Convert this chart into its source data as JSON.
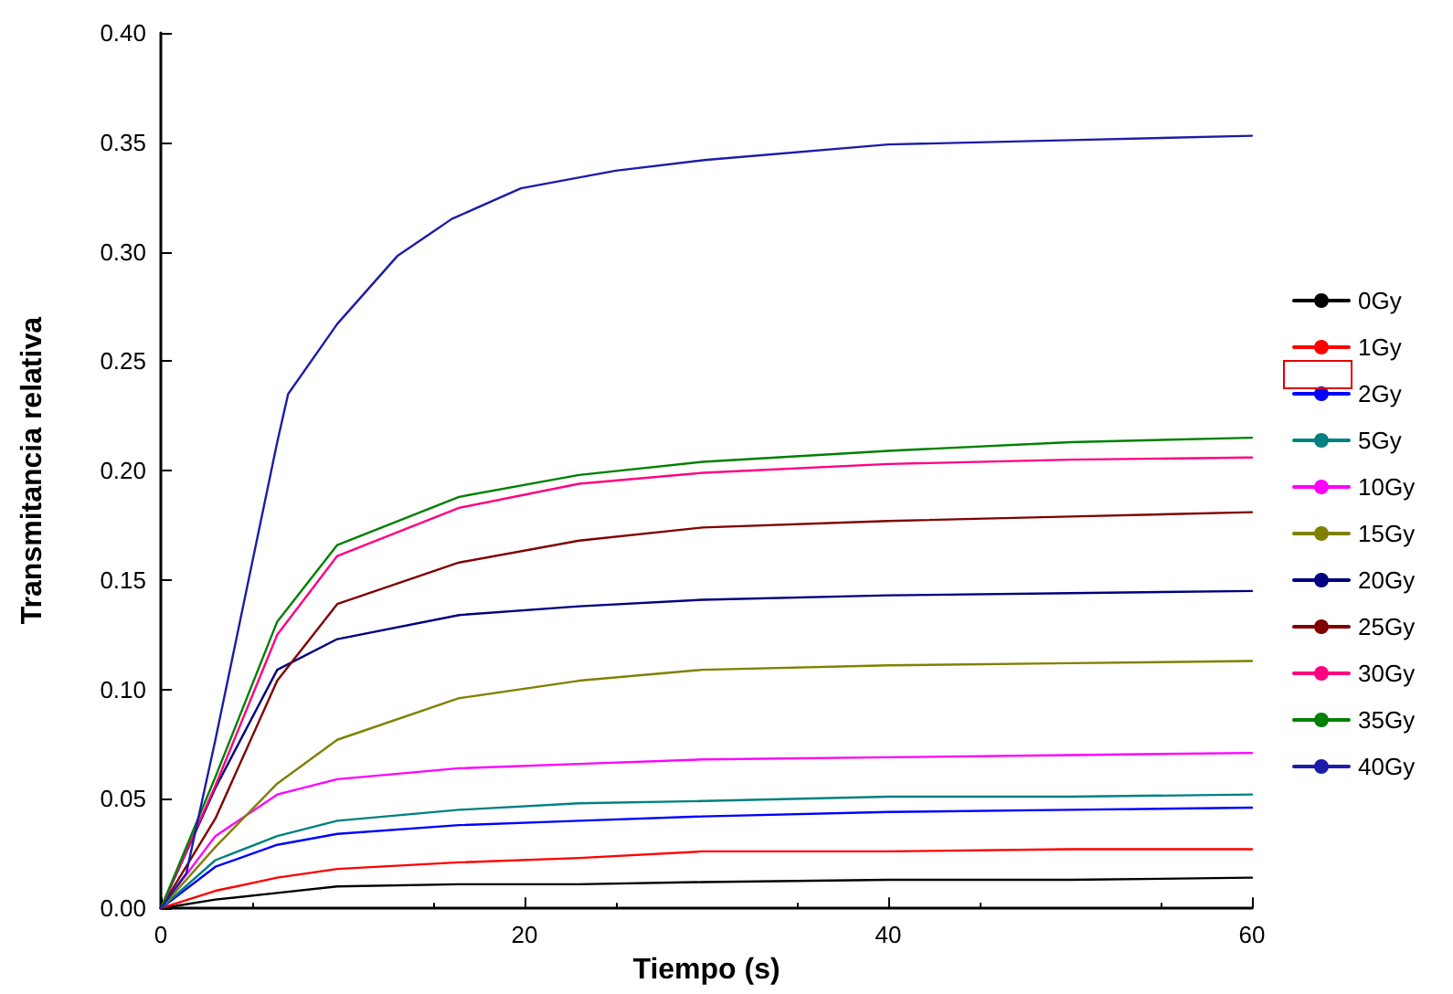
{
  "chart_data": {
    "type": "line",
    "xlabel": "Tiempo (s)",
    "ylabel": "Transmitancia relativa",
    "x": [
      0,
      3,
      6.4,
      9.7,
      16.4,
      23,
      29.8,
      40,
      50,
      60
    ],
    "xlim": [
      0,
      60
    ],
    "xticks": [
      0,
      20,
      40,
      60
    ],
    "ylim": [
      0,
      0.4
    ],
    "yticks": [
      {
        "value": 0,
        "label": "0.00"
      },
      {
        "value": 0.05,
        "label": "0.05"
      },
      {
        "value": 0.1,
        "label": "0.10"
      },
      {
        "value": 0.15,
        "label": "0.15"
      },
      {
        "value": 0.2,
        "label": "0.20"
      },
      {
        "value": 0.25,
        "label": "0.25"
      },
      {
        "value": 0.3,
        "label": "0.30"
      },
      {
        "value": 0.35,
        "label": "0.35"
      },
      {
        "value": 0.4,
        "label": "0.40"
      }
    ],
    "grid": false,
    "legend": "right",
    "marker": "none",
    "line_style": "solid",
    "series": [
      {
        "name": "0Gy",
        "color": "#000000",
        "values": [
          0,
          0.004,
          0.007,
          0.01,
          0.011,
          0.011,
          0.012,
          0.013,
          0.013,
          0.014
        ]
      },
      {
        "name": "1Gy",
        "color": "#ff0000",
        "values": [
          0,
          0.008,
          0.014,
          0.018,
          0.021,
          0.023,
          0.026,
          0.026,
          0.027,
          0.027
        ]
      },
      {
        "name": "2Gy",
        "color": "#0000ff",
        "values": [
          0,
          0.019,
          0.029,
          0.034,
          0.038,
          0.04,
          0.042,
          0.044,
          0.045,
          0.046
        ]
      },
      {
        "name": "5Gy",
        "color": "#008080",
        "values": [
          0,
          0.022,
          0.033,
          0.04,
          0.045,
          0.048,
          0.049,
          0.051,
          0.051,
          0.052
        ]
      },
      {
        "name": "10Gy",
        "color": "#ff00ff",
        "values": [
          0,
          0.033,
          0.052,
          0.059,
          0.064,
          0.066,
          0.068,
          0.069,
          0.07,
          0.071
        ]
      },
      {
        "name": "15Gy",
        "color": "#808000",
        "values": [
          0,
          0.028,
          0.057,
          0.077,
          0.096,
          0.104,
          0.109,
          0.111,
          0.112,
          0.113
        ]
      },
      {
        "name": "20Gy",
        "color": "#000080",
        "values": [
          0,
          0.055,
          0.109,
          0.123,
          0.134,
          0.138,
          0.141,
          0.143,
          0.144,
          0.145
        ]
      },
      {
        "name": "25Gy",
        "color": "#800000",
        "values": [
          0,
          0.041,
          0.104,
          0.139,
          0.158,
          0.168,
          0.174,
          0.177,
          0.179,
          0.181
        ]
      },
      {
        "name": "30Gy",
        "color": "#ff0080",
        "values": [
          0,
          0.056,
          0.125,
          0.161,
          0.183,
          0.194,
          0.199,
          0.203,
          0.205,
          0.206
        ]
      },
      {
        "name": "35Gy",
        "color": "#008000",
        "values": [
          0,
          0.06,
          0.131,
          0.166,
          0.188,
          0.198,
          0.204,
          0.209,
          0.213,
          0.215
        ]
      },
      {
        "name": "40Gy",
        "color": "#1c1ca8",
        "x": [
          0,
          1.4,
          3,
          5,
          6.4,
          7,
          9.7,
          13,
          16,
          19.8,
          25,
          30,
          40,
          50,
          60
        ],
        "values": [
          0,
          0.016,
          0.077,
          0.157,
          0.213,
          0.235,
          0.267,
          0.298,
          0.315,
          0.329,
          0.337,
          0.342,
          0.349,
          0.351,
          0.353
        ]
      }
    ]
  }
}
